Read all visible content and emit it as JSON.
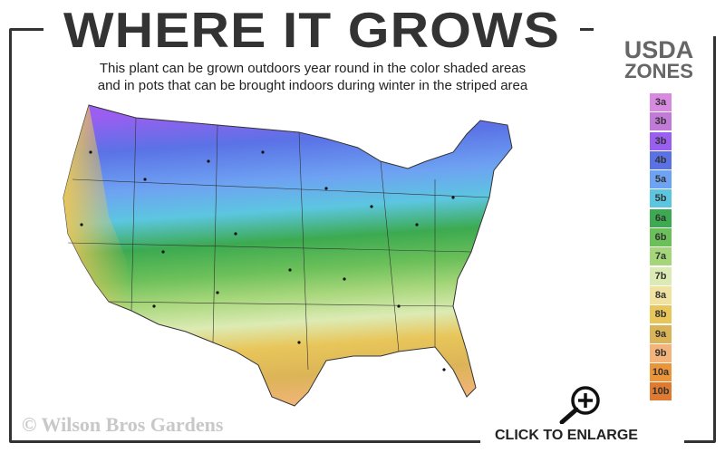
{
  "header": {
    "title": "WHERE IT GROWS",
    "subtitle_line1": "This plant can be grown outdoors year round in the color shaded areas",
    "subtitle_line2": "and in pots that can be brought indoors during winter in the striped area"
  },
  "legend": {
    "title_line1": "USDA",
    "title_line2": "ZONES",
    "zones": [
      {
        "label": "3a",
        "color": "#d88ae0"
      },
      {
        "label": "3b",
        "color": "#c27ad8"
      },
      {
        "label": "3b",
        "color": "#9a5ef0"
      },
      {
        "label": "4b",
        "color": "#5a72e6"
      },
      {
        "label": "5a",
        "color": "#6ea2f2"
      },
      {
        "label": "5b",
        "color": "#5cc6e0"
      },
      {
        "label": "6a",
        "color": "#3caa50"
      },
      {
        "label": "6b",
        "color": "#6cc05a"
      },
      {
        "label": "7a",
        "color": "#a6d67a"
      },
      {
        "label": "7b",
        "color": "#dcebb4"
      },
      {
        "label": "8a",
        "color": "#f0e2a0"
      },
      {
        "label": "8b",
        "color": "#e8c65a"
      },
      {
        "label": "9a",
        "color": "#dcb458"
      },
      {
        "label": "9b",
        "color": "#f2b47a"
      },
      {
        "label": "10a",
        "color": "#ec9438"
      },
      {
        "label": "10b",
        "color": "#e07a30"
      }
    ]
  },
  "map": {
    "icon": "usda-zone-map-usa"
  },
  "footer": {
    "copyright": "© Wilson Bros Gardens",
    "enlarge_label": "CLICK TO ENLARGE",
    "enlarge_icon": "zoom-in-magnifier-icon"
  }
}
